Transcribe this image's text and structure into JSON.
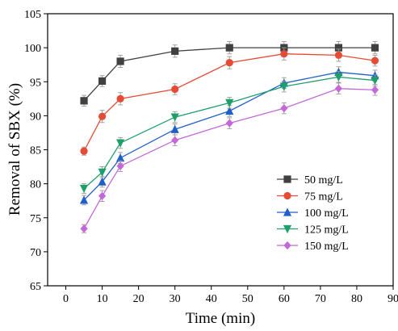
{
  "chart_data": {
    "type": "line",
    "xlabel": "Time (min)",
    "ylabel": "Removal of SBX (%)",
    "xlim": [
      -5,
      90
    ],
    "ylim": [
      65,
      105
    ],
    "xticks": [
      0,
      10,
      20,
      30,
      40,
      50,
      60,
      70,
      80,
      90
    ],
    "yticks": [
      65,
      70,
      75,
      80,
      85,
      90,
      95,
      100,
      105
    ],
    "x": [
      5,
      10,
      15,
      30,
      45,
      60,
      75,
      85
    ],
    "legend_position": "lower-right",
    "grid": false,
    "series": [
      {
        "name": "50 mg/L",
        "color": "#404040",
        "marker": "square",
        "values": [
          92.2,
          95.1,
          98.0,
          99.5,
          100.0,
          100.0,
          100.0,
          100.0
        ],
        "errors": [
          0.8,
          0.8,
          0.9,
          0.9,
          0.9,
          0.9,
          0.9,
          0.9
        ]
      },
      {
        "name": "75 mg/L",
        "color": "#e64b35",
        "marker": "circle",
        "values": [
          84.8,
          89.9,
          92.5,
          93.9,
          97.8,
          99.1,
          98.9,
          98.1
        ],
        "errors": [
          0.6,
          0.9,
          0.9,
          0.8,
          0.9,
          0.9,
          0.9,
          0.8
        ]
      },
      {
        "name": "100 mg/L",
        "color": "#1f5fc8",
        "marker": "triangle-up",
        "values": [
          77.6,
          80.3,
          83.8,
          88.0,
          90.7,
          94.8,
          96.4,
          95.9
        ],
        "errors": [
          0.7,
          0.8,
          0.8,
          0.8,
          0.8,
          0.8,
          0.8,
          0.8
        ]
      },
      {
        "name": "125 mg/L",
        "color": "#1e9e6a",
        "marker": "triangle-down",
        "values": [
          79.3,
          81.7,
          86.0,
          89.8,
          91.9,
          94.3,
          95.7,
          95.2
        ],
        "errors": [
          0.7,
          0.8,
          0.8,
          0.8,
          0.8,
          0.8,
          0.8,
          0.8
        ]
      },
      {
        "name": "150 mg/L",
        "color": "#c467d8",
        "marker": "diamond",
        "values": [
          73.4,
          78.2,
          82.6,
          86.4,
          88.9,
          91.1,
          94.0,
          93.8
        ],
        "errors": [
          0.6,
          0.8,
          0.8,
          0.8,
          0.8,
          0.8,
          0.8,
          0.8
        ]
      }
    ]
  }
}
